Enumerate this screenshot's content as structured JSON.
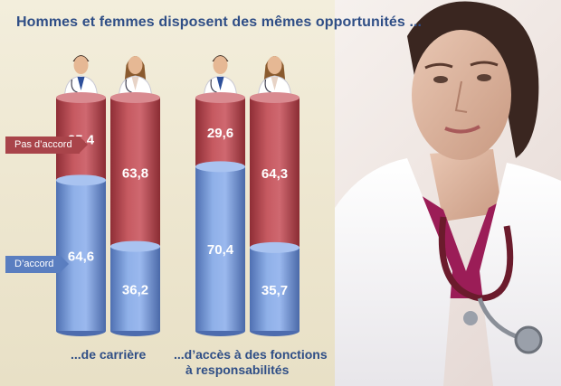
{
  "title": "Hommes et femmes disposent des mêmes opportunités ...",
  "legend": {
    "disagree": "Pas d’accord",
    "agree": "D’accord"
  },
  "colors": {
    "disagree": "#b5474e",
    "agree": "#6f90d0",
    "title": "#2f4e86"
  },
  "icons": [
    "male-doctor-icon",
    "female-doctor-icon"
  ],
  "chart_data": {
    "type": "bar",
    "stacked": true,
    "groups": [
      {
        "label": "...de carrière",
        "bars": [
          {
            "who": "homme",
            "agree": 64.6,
            "disagree": 35.4
          },
          {
            "who": "femme",
            "agree": 36.2,
            "disagree": 63.8
          }
        ]
      },
      {
        "label": "...d’accès à des fonctions",
        "label_line2": "à responsabilités",
        "bars": [
          {
            "who": "homme",
            "agree": 70.4,
            "disagree": 29.6
          },
          {
            "who": "femme",
            "agree": 35.7,
            "disagree": 64.3
          }
        ]
      }
    ],
    "value_labels": {
      "agree": [
        "64,6",
        "36,2",
        "70,4",
        "35,7"
      ],
      "disagree": [
        "35,4",
        "63,8",
        "29,6",
        "64,3"
      ]
    },
    "ylim": [
      0,
      100
    ]
  }
}
